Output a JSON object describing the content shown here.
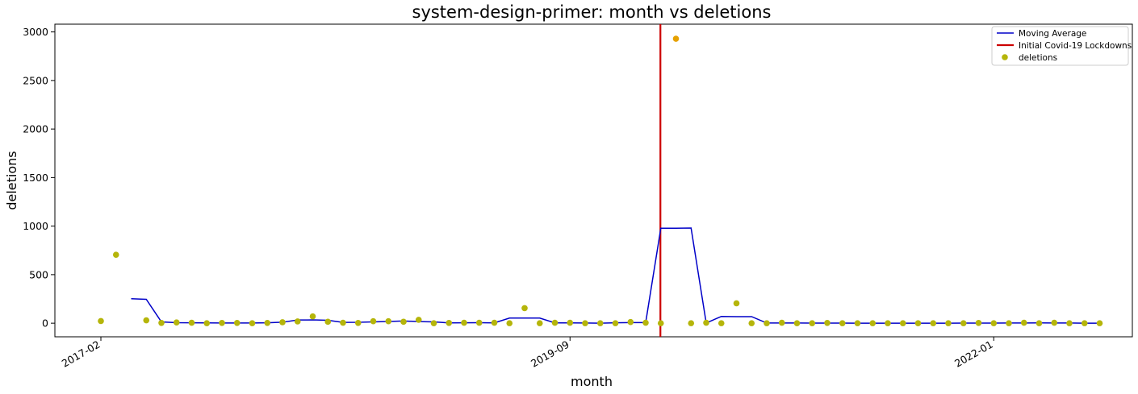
{
  "chart_data": {
    "type": "scatter",
    "title": "system-design-primer: month vs deletions",
    "xlabel": "month",
    "ylabel": "deletions",
    "x_tick_labels": [
      "2017-02",
      "2019-09",
      "2022-01"
    ],
    "y_ticks": [
      0,
      500,
      1000,
      1500,
      2000,
      2500,
      3000
    ],
    "ylim": [
      -140,
      3080
    ],
    "legend": {
      "position": "top-right",
      "items": [
        "Moving Average",
        "Initial Covid-19 Lockdowns",
        "deletions"
      ]
    },
    "colors": {
      "moving_average": "#0000c8",
      "covid_line": "#cc0000",
      "deletions": "#b5b50a",
      "covid_point": "#e6a100"
    },
    "covid_lockdown_month": "2020-03",
    "series": [
      {
        "name": "deletions",
        "points": [
          [
            "2017-02",
            22
          ],
          [
            "2017-03",
            705
          ],
          [
            "2017-05",
            30
          ],
          [
            "2017-06",
            3
          ],
          [
            "2017-07",
            8
          ],
          [
            "2017-08",
            5
          ],
          [
            "2017-09",
            0
          ],
          [
            "2017-10",
            3
          ],
          [
            "2017-11",
            3
          ],
          [
            "2017-12",
            0
          ],
          [
            "2018-01",
            3
          ],
          [
            "2018-02",
            10
          ],
          [
            "2018-03",
            18
          ],
          [
            "2018-04",
            70
          ],
          [
            "2018-05",
            15
          ],
          [
            "2018-06",
            5
          ],
          [
            "2018-07",
            3
          ],
          [
            "2018-08",
            20
          ],
          [
            "2018-09",
            20
          ],
          [
            "2018-10",
            15
          ],
          [
            "2018-11",
            35
          ],
          [
            "2018-12",
            0
          ],
          [
            "2019-01",
            3
          ],
          [
            "2019-02",
            5
          ],
          [
            "2019-03",
            5
          ],
          [
            "2019-04",
            5
          ],
          [
            "2019-05",
            0
          ],
          [
            "2019-06",
            155
          ],
          [
            "2019-07",
            0
          ],
          [
            "2019-08",
            5
          ],
          [
            "2019-09",
            5
          ],
          [
            "2019-10",
            0
          ],
          [
            "2019-11",
            0
          ],
          [
            "2019-12",
            0
          ],
          [
            "2020-01",
            12
          ],
          [
            "2020-02",
            5
          ],
          [
            "2020-03",
            0
          ],
          [
            "2020-04",
            2930
          ],
          [
            "2020-05",
            0
          ],
          [
            "2020-06",
            5
          ],
          [
            "2020-07",
            0
          ],
          [
            "2020-08",
            205
          ],
          [
            "2020-09",
            0
          ],
          [
            "2020-10",
            0
          ],
          [
            "2020-11",
            5
          ],
          [
            "2020-12",
            0
          ],
          [
            "2021-01",
            0
          ],
          [
            "2021-02",
            3
          ],
          [
            "2021-03",
            0
          ],
          [
            "2021-04",
            0
          ],
          [
            "2021-05",
            0
          ],
          [
            "2021-06",
            0
          ],
          [
            "2021-07",
            0
          ],
          [
            "2021-08",
            0
          ],
          [
            "2021-09",
            0
          ],
          [
            "2021-10",
            0
          ],
          [
            "2021-11",
            0
          ],
          [
            "2021-12",
            3
          ],
          [
            "2022-01",
            0
          ],
          [
            "2022-02",
            0
          ],
          [
            "2022-03",
            5
          ],
          [
            "2022-04",
            0
          ],
          [
            "2022-05",
            5
          ],
          [
            "2022-06",
            0
          ],
          [
            "2022-07",
            0
          ],
          [
            "2022-08",
            0
          ]
        ]
      },
      {
        "name": "Moving Average",
        "points": [
          [
            "2017-04",
            252
          ],
          [
            "2017-05",
            246
          ],
          [
            "2017-06",
            13
          ],
          [
            "2017-07",
            5
          ],
          [
            "2017-08",
            4
          ],
          [
            "2017-09",
            3
          ],
          [
            "2017-10",
            2
          ],
          [
            "2017-11",
            2
          ],
          [
            "2017-12",
            2
          ],
          [
            "2018-01",
            4
          ],
          [
            "2018-02",
            10
          ],
          [
            "2018-03",
            33
          ],
          [
            "2018-04",
            34
          ],
          [
            "2018-05",
            30
          ],
          [
            "2018-06",
            8
          ],
          [
            "2018-07",
            9
          ],
          [
            "2018-08",
            14
          ],
          [
            "2018-09",
            18
          ],
          [
            "2018-10",
            23
          ],
          [
            "2018-11",
            17
          ],
          [
            "2018-12",
            13
          ],
          [
            "2019-01",
            3
          ],
          [
            "2019-02",
            4
          ],
          [
            "2019-03",
            5
          ],
          [
            "2019-04",
            3
          ],
          [
            "2019-05",
            53
          ],
          [
            "2019-06",
            53
          ],
          [
            "2019-07",
            53
          ],
          [
            "2019-08",
            3
          ],
          [
            "2019-09",
            3
          ],
          [
            "2019-10",
            2
          ],
          [
            "2019-11",
            0
          ],
          [
            "2019-12",
            4
          ],
          [
            "2020-01",
            6
          ],
          [
            "2020-02",
            6
          ],
          [
            "2020-03",
            978
          ],
          [
            "2020-04",
            978
          ],
          [
            "2020-05",
            980
          ],
          [
            "2020-06",
            2
          ],
          [
            "2020-07",
            70
          ],
          [
            "2020-08",
            68
          ],
          [
            "2020-09",
            68
          ],
          [
            "2020-10",
            2
          ],
          [
            "2020-11",
            2
          ],
          [
            "2020-12",
            2
          ],
          [
            "2021-01",
            1
          ],
          [
            "2021-02",
            1
          ],
          [
            "2021-03",
            1
          ],
          [
            "2021-04",
            0
          ],
          [
            "2021-05",
            0
          ],
          [
            "2021-06",
            0
          ],
          [
            "2021-07",
            0
          ],
          [
            "2021-08",
            0
          ],
          [
            "2021-09",
            0
          ],
          [
            "2021-10",
            0
          ],
          [
            "2021-11",
            1
          ],
          [
            "2021-12",
            1
          ],
          [
            "2022-01",
            1
          ],
          [
            "2022-02",
            2
          ],
          [
            "2022-03",
            2
          ],
          [
            "2022-04",
            3
          ],
          [
            "2022-05",
            2
          ],
          [
            "2022-06",
            2
          ],
          [
            "2022-07",
            0
          ],
          [
            "2022-08",
            0
          ]
        ]
      }
    ]
  }
}
